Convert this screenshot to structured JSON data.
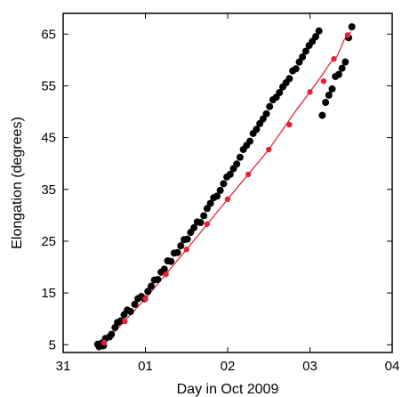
{
  "chart_data": {
    "type": "scatter",
    "title": "",
    "xlabel": "Day in Oct 2009",
    "ylabel": "Elongation (degrees)",
    "xlim": [
      "2009-10-31T00:00",
      "2009-11-04T00:00"
    ],
    "ylim": [
      3.5,
      69
    ],
    "x_ticks": [
      "2009-10-31",
      "2009-11-01",
      "2009-11-02",
      "2009-11-03",
      "2009-11-04"
    ],
    "x_tick_labels": [
      "31",
      "01",
      "02",
      "03",
      "04"
    ],
    "y_ticks": [
      5,
      15,
      25,
      35,
      45,
      55,
      65
    ],
    "y_tick_labels": [
      "5",
      "15",
      "25",
      "35",
      "45",
      "55",
      "65"
    ],
    "grid": false,
    "colors": {
      "scatter": "#000000",
      "fit": "#e8213a"
    },
    "series": [
      {
        "type": "scatter",
        "x": [
          "2009-10-31T10:04",
          "2009-10-31T10:30",
          "2009-10-31T11:17",
          "2009-10-31T11:46",
          "2009-10-31T12:20",
          "2009-10-31T13:30",
          "2009-10-31T14:05",
          "2009-10-31T15:07",
          "2009-10-31T15:50",
          "2009-10-31T16:48",
          "2009-10-31T17:46",
          "2009-10-31T18:43",
          "2009-10-31T19:41",
          "2009-10-31T20:53",
          "2009-10-31T21:50",
          "2009-10-31T22:48",
          "2009-10-31T23:46",
          "2009-11-01T00:43",
          "2009-11-01T01:41",
          "2009-11-01T02:38",
          "2009-11-01T03:36",
          "2009-11-01T04:34",
          "2009-11-01T05:31",
          "2009-11-01T06:29",
          "2009-11-01T07:26",
          "2009-11-01T08:24",
          "2009-11-01T09:22",
          "2009-11-01T10:19",
          "2009-11-01T11:17",
          "2009-11-01T12:14",
          "2009-11-01T13:12",
          "2009-11-01T14:10",
          "2009-11-01T15:07",
          "2009-11-01T16:05",
          "2009-11-01T17:02",
          "2009-11-01T18:00",
          "2009-11-01T18:58",
          "2009-11-01T19:55",
          "2009-11-01T20:53",
          "2009-11-01T21:50",
          "2009-11-01T22:48",
          "2009-11-01T23:46",
          "2009-11-02T00:43",
          "2009-11-02T01:41",
          "2009-11-02T02:38",
          "2009-11-02T03:36",
          "2009-11-02T04:34",
          "2009-11-02T05:31",
          "2009-11-02T06:29",
          "2009-11-02T07:26",
          "2009-11-02T08:24",
          "2009-11-02T09:22",
          "2009-11-02T10:19",
          "2009-11-02T11:17",
          "2009-11-02T12:14",
          "2009-11-02T13:12",
          "2009-11-02T14:10",
          "2009-11-02T15:07",
          "2009-11-02T16:05",
          "2009-11-02T17:02",
          "2009-11-02T18:00",
          "2009-11-02T18:58",
          "2009-11-02T19:55",
          "2009-11-02T20:53",
          "2009-11-02T21:50",
          "2009-11-02T22:48",
          "2009-11-02T23:46",
          "2009-11-03T00:43",
          "2009-11-03T01:41",
          "2009-11-03T02:38",
          "2009-11-03T03:36",
          "2009-11-03T04:34",
          "2009-11-03T05:31",
          "2009-11-03T06:29",
          "2009-11-03T07:26",
          "2009-11-03T08:24",
          "2009-11-03T09:22",
          "2009-11-03T10:19",
          "2009-11-03T11:17",
          "2009-11-03T12:14"
        ],
        "y": [
          5.1,
          4.6,
          5.3,
          4.8,
          6.2,
          6.5,
          7.0,
          8.3,
          9.3,
          9.6,
          10.8,
          11.7,
          11.4,
          12.8,
          13.9,
          14.3,
          13.9,
          15.3,
          16.3,
          17.5,
          17.6,
          19.0,
          19.6,
          21.2,
          21.1,
          22.7,
          22.8,
          24.1,
          25.3,
          25.4,
          26.7,
          27.6,
          28.7,
          28.6,
          29.9,
          31.3,
          32.3,
          33.4,
          33.7,
          34.8,
          36.1,
          37.4,
          37.9,
          39.0,
          39.9,
          41.2,
          42.7,
          43.5,
          44.3,
          45.8,
          46.6,
          47.7,
          48.6,
          49.6,
          51.0,
          52.3,
          52.8,
          53.7,
          54.8,
          55.6,
          56.4,
          57.9,
          58.3,
          59.6,
          60.6,
          61.7,
          62.8,
          63.6,
          64.5,
          65.6,
          49.3,
          51.8,
          53.2,
          54.4,
          56.8,
          57.2,
          58.4,
          59.6,
          64.3,
          66.4
        ]
      },
      {
        "type": "line",
        "x": [
          "2009-10-31T12:00",
          "2009-11-01T00:00",
          "2009-11-01T12:00",
          "2009-11-02T00:00",
          "2009-11-02T12:00",
          "2009-11-02T20:00",
          "2009-11-03T00:00",
          "2009-11-03T04:00",
          "2009-11-03T06:00",
          "2009-11-03T08:00",
          "2009-11-03T10:00",
          "2009-11-03T12:00"
        ],
        "y": [
          5.4,
          13.9,
          23.4,
          33.1,
          42.7,
          50.3,
          53.8,
          57.5,
          59.5,
          60.8,
          63.9,
          65.5
        ]
      }
    ],
    "fit_markers": {
      "x": [
        "2009-10-31T12:00",
        "2009-10-31T18:00",
        "2009-11-01T00:00",
        "2009-11-01T06:00",
        "2009-11-01T12:00",
        "2009-11-01T18:00",
        "2009-11-02T00:00",
        "2009-11-02T06:00",
        "2009-11-02T12:00",
        "2009-11-02T18:00",
        "2009-11-03T00:00",
        "2009-11-03T04:00",
        "2009-11-03T07:00",
        "2009-11-03T11:00"
      ],
      "y": [
        5.4,
        9.5,
        13.9,
        18.6,
        23.4,
        28.3,
        33.1,
        37.9,
        42.7,
        47.5,
        53.8,
        55.9,
        60.2,
        64.8
      ]
    }
  }
}
